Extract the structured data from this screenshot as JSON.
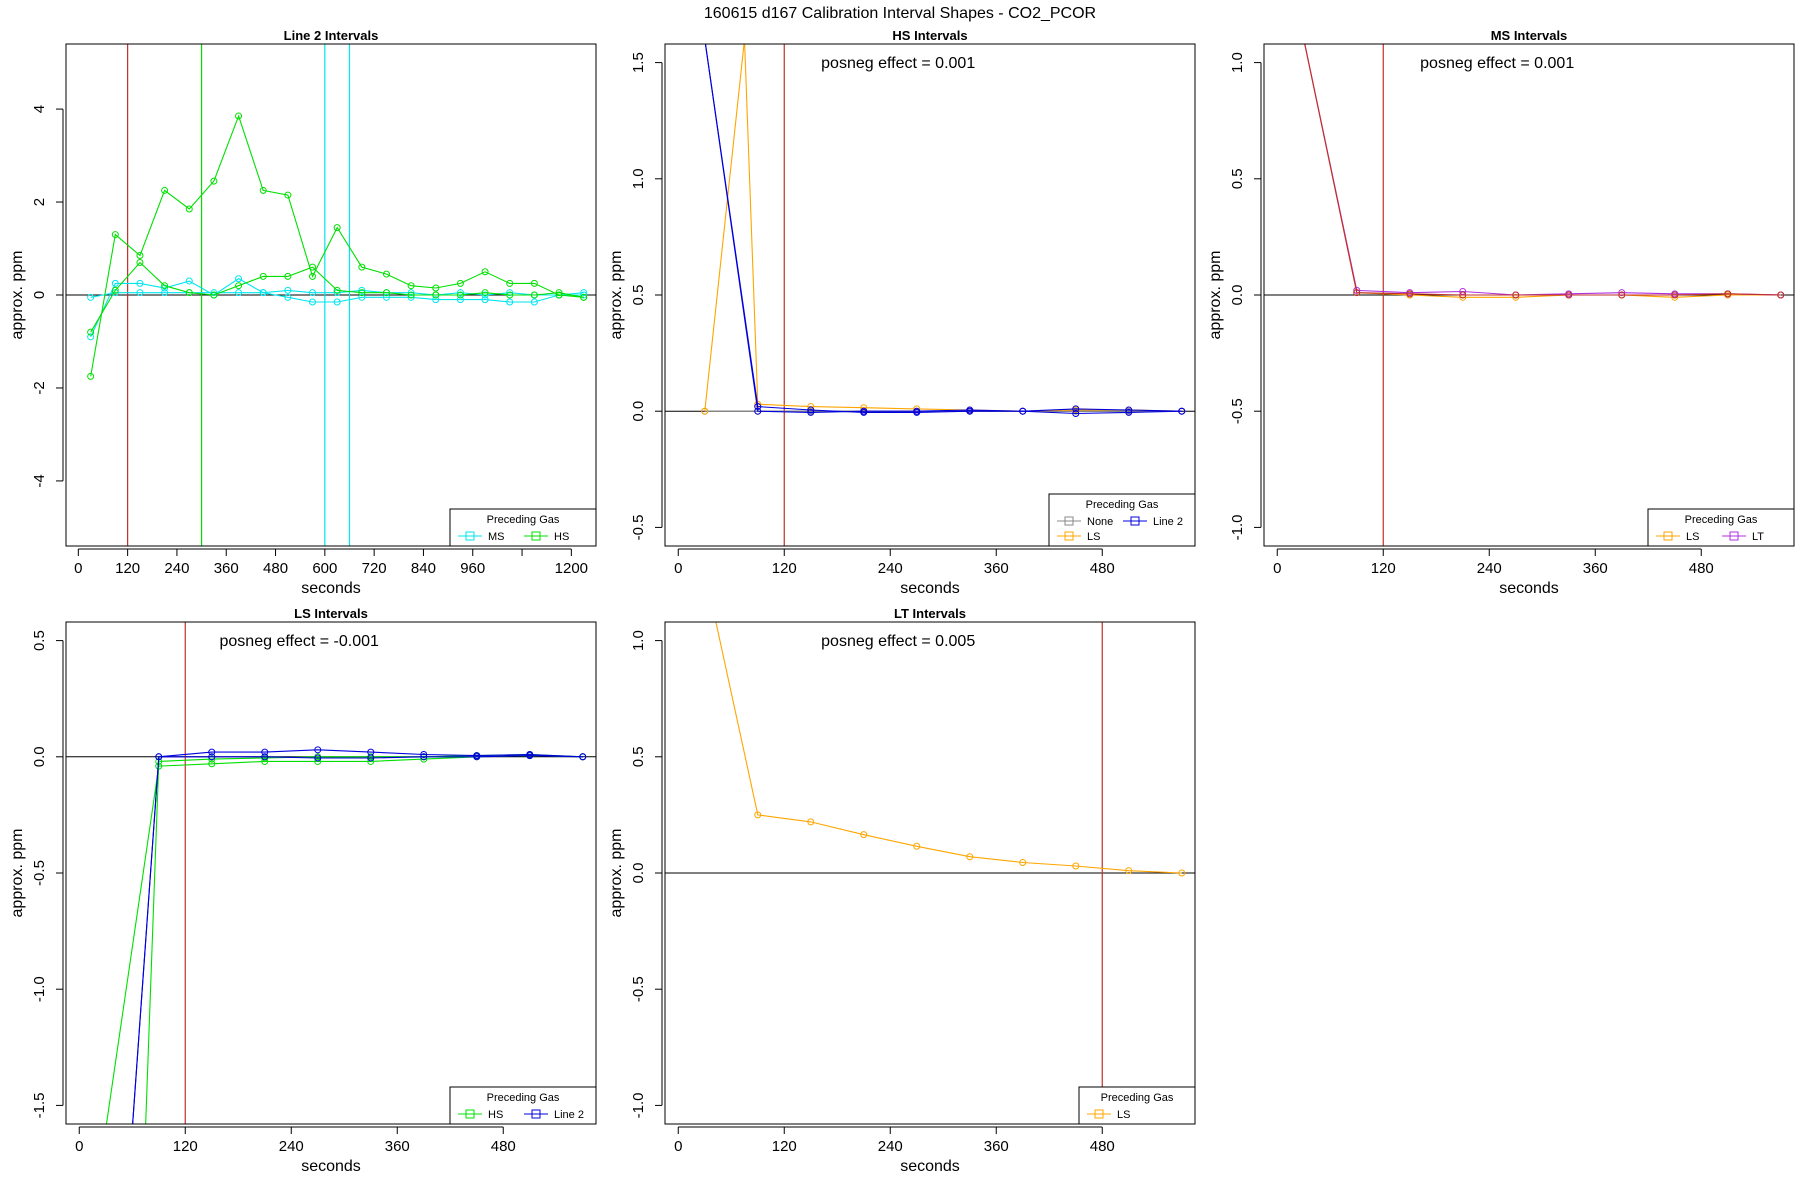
{
  "figure": {
    "title": "160615  d167   Calibration Interval Shapes - CO2_PCOR",
    "colors": {
      "ms": "#00e5ee",
      "hs": "#00e000",
      "ls": "#ffa500",
      "lt": "#b030e0",
      "line2": "#0000dd",
      "none": "#888888",
      "redline": "#c0302a",
      "zero": "#000000"
    }
  },
  "chart_data": [
    {
      "id": "line2",
      "type": "line",
      "title": "Line 2 Intervals",
      "xlabel": "seconds",
      "ylabel": "approx. ppm",
      "xlim": [
        -30,
        1260
      ],
      "ylim": [
        -5.4,
        5.4
      ],
      "xticks": [
        0,
        120,
        240,
        360,
        480,
        600,
        720,
        840,
        960,
        1080,
        1200
      ],
      "xtick_labels": [
        "0",
        "120",
        "240",
        "360",
        "480",
        "600",
        "720",
        "840",
        "960",
        "",
        "1200"
      ],
      "yticks": [
        -4,
        -2,
        0,
        2,
        4
      ],
      "posneg": "",
      "vlines": [
        {
          "x": 120,
          "color": "redline"
        },
        {
          "x": 300,
          "color": "hs"
        },
        {
          "x": 600,
          "color": "ms"
        },
        {
          "x": 660,
          "color": "ms"
        }
      ],
      "series": [
        {
          "name": "MS",
          "color": "ms",
          "x": [
            30,
            90,
            150,
            210,
            270,
            330,
            390,
            450,
            510,
            570,
            630,
            690,
            750,
            810,
            870,
            930,
            990,
            1050,
            1110,
            1170,
            1230
          ],
          "y": [
            -0.9,
            0.25,
            0.25,
            0.15,
            0.3,
            0.0,
            0.35,
            0.05,
            0.1,
            0.05,
            0.05,
            0.1,
            0.05,
            0.05,
            0.0,
            0.05,
            0.0,
            0.05,
            0.0,
            0.0,
            0.05
          ]
        },
        {
          "name": "MS",
          "color": "ms",
          "x": [
            30,
            90,
            150,
            210,
            270,
            330,
            390,
            450,
            510,
            570,
            630,
            690,
            750,
            810,
            870,
            930,
            990,
            1050,
            1110,
            1170,
            1230
          ],
          "y": [
            -0.05,
            0.05,
            0.05,
            0.05,
            0.05,
            0.05,
            0.05,
            0.05,
            -0.05,
            -0.15,
            -0.15,
            -0.05,
            -0.05,
            -0.05,
            -0.1,
            -0.1,
            -0.1,
            -0.15,
            -0.15,
            0.0,
            0.0
          ]
        },
        {
          "name": "HS",
          "color": "hs",
          "x": [
            30,
            90,
            150,
            210,
            270,
            330,
            390,
            450,
            510,
            570,
            630,
            690,
            750,
            810,
            870,
            930,
            990,
            1050,
            1110,
            1170,
            1230
          ],
          "y": [
            -1.75,
            1.3,
            0.85,
            2.25,
            1.85,
            2.45,
            3.85,
            2.25,
            2.15,
            0.4,
            1.45,
            0.6,
            0.45,
            0.2,
            0.15,
            0.25,
            0.5,
            0.25,
            0.25,
            0.0,
            -0.05
          ]
        },
        {
          "name": "HS",
          "color": "hs",
          "x": [
            30,
            90,
            150,
            210,
            270,
            330,
            390,
            450,
            510,
            570,
            630,
            690,
            750,
            810,
            870,
            930,
            990,
            1050,
            1110,
            1170,
            1230
          ],
          "y": [
            -0.8,
            0.1,
            0.7,
            0.2,
            0.05,
            0.0,
            0.2,
            0.4,
            0.4,
            0.6,
            0.1,
            0.05,
            0.05,
            0.0,
            0.0,
            0.0,
            0.05,
            0.0,
            0.0,
            0.05,
            -0.05
          ]
        }
      ],
      "legend": {
        "title": "Preceding Gas",
        "position": "bottom-right",
        "entries": [
          {
            "label": "MS",
            "color": "ms"
          },
          {
            "label": "HS",
            "color": "hs"
          }
        ]
      }
    },
    {
      "id": "hs",
      "type": "line",
      "title": "HS Intervals",
      "xlabel": "seconds",
      "ylabel": "approx. ppm",
      "xlim": [
        -15,
        585
      ],
      "ylim": [
        -0.58,
        1.58
      ],
      "xticks": [
        0,
        120,
        240,
        360,
        480
      ],
      "xtick_labels": [
        "0",
        "120",
        "240",
        "360",
        "480"
      ],
      "yticks": [
        -0.5,
        0.0,
        0.5,
        1.0,
        1.5
      ],
      "posneg": "posneg effect = 0.001",
      "vlines": [
        {
          "x": 120,
          "color": "redline"
        }
      ],
      "series": [
        {
          "name": "None",
          "color": "none",
          "x": [
            30,
            90,
            150,
            210,
            270,
            330,
            390,
            450,
            510,
            570
          ],
          "y": [
            0.0,
            0.0,
            0.0,
            0.0,
            0.0,
            0.0,
            0.0,
            0.0,
            0.0,
            0.0
          ]
        },
        {
          "name": "LS",
          "color": "ls",
          "x": [
            30,
            75,
            90,
            150,
            210,
            270,
            330,
            390,
            450,
            510,
            570
          ],
          "y": [
            0.0,
            1.6,
            0.03,
            0.02,
            0.015,
            0.01,
            0.005,
            0.0,
            0.005,
            0.005,
            0.0
          ]
        },
        {
          "name": "Line 2",
          "color": "line2",
          "x": [
            30,
            90,
            150,
            210,
            270,
            330,
            390,
            450,
            510,
            570
          ],
          "y": [
            1.6,
            0.0,
            -0.005,
            0.0,
            0.0,
            0.005,
            0.0,
            0.01,
            0.005,
            0.0
          ]
        },
        {
          "name": "Line 2",
          "color": "line2",
          "x": [
            30,
            90,
            150,
            210,
            270,
            330,
            390,
            450,
            510,
            570
          ],
          "y": [
            1.6,
            0.02,
            0.005,
            -0.005,
            -0.005,
            0.0,
            0.0,
            -0.01,
            -0.005,
            0.0
          ]
        }
      ],
      "legend": {
        "title": "Preceding Gas",
        "position": "bottom-right",
        "entries": [
          {
            "label": "None",
            "color": "none"
          },
          {
            "label": "Line 2",
            "color": "line2"
          },
          {
            "label": "LS",
            "color": "ls"
          }
        ]
      }
    },
    {
      "id": "ms",
      "type": "line",
      "title": "MS Intervals",
      "xlabel": "seconds",
      "ylabel": "approx. ppm",
      "xlim": [
        -15,
        585
      ],
      "ylim": [
        -1.08,
        1.08
      ],
      "xticks": [
        0,
        120,
        240,
        360,
        480
      ],
      "xtick_labels": [
        "0",
        "120",
        "240",
        "360",
        "480"
      ],
      "yticks": [
        -1.0,
        -0.5,
        0.0,
        0.5,
        1.0
      ],
      "posneg": "posneg effect = 0.001",
      "vlines": [
        {
          "x": 120,
          "color": "redline"
        }
      ],
      "series": [
        {
          "name": "LS",
          "color": "ls",
          "x": [
            30,
            90,
            150,
            210,
            270,
            330,
            390,
            450,
            510,
            570
          ],
          "y": [
            1.1,
            0.01,
            0.0,
            -0.01,
            -0.01,
            0.0,
            0.0,
            -0.01,
            0.0,
            0.0
          ]
        },
        {
          "name": "LT",
          "color": "lt",
          "x": [
            30,
            90,
            150,
            210,
            270,
            330,
            390,
            450,
            510,
            570
          ],
          "y": [
            1.1,
            0.02,
            0.01,
            0.015,
            0.0,
            0.005,
            0.01,
            0.005,
            0.005,
            0.0
          ]
        },
        {
          "name": "LS",
          "color": "redline",
          "x": [
            30,
            90,
            150,
            210,
            270,
            330,
            390,
            450,
            510,
            570
          ],
          "y": [
            1.1,
            0.01,
            0.005,
            0.0,
            0.0,
            0.0,
            0.0,
            0.0,
            0.005,
            0.0
          ]
        }
      ],
      "legend": {
        "title": "Preceding Gas",
        "position": "bottom-right",
        "entries": [
          {
            "label": "LS",
            "color": "ls"
          },
          {
            "label": "LT",
            "color": "lt"
          }
        ]
      }
    },
    {
      "id": "ls",
      "type": "line",
      "title": "LS Intervals",
      "xlabel": "seconds",
      "ylabel": "approx. ppm",
      "xlim": [
        -15,
        585
      ],
      "ylim": [
        -1.58,
        0.58
      ],
      "xticks": [
        0,
        120,
        240,
        360,
        480
      ],
      "xtick_labels": [
        "0",
        "120",
        "240",
        "360",
        "480"
      ],
      "yticks": [
        -1.5,
        -1.0,
        -0.5,
        0.0,
        0.5
      ],
      "posneg": "posneg effect = -0.001",
      "vlines": [
        {
          "x": 120,
          "color": "redline"
        }
      ],
      "series": [
        {
          "name": "HS",
          "color": "hs",
          "x": [
            30,
            90,
            150,
            210,
            270,
            330,
            390,
            450,
            510,
            570
          ],
          "y": [
            -1.6,
            -0.04,
            -0.03,
            -0.02,
            -0.02,
            -0.02,
            -0.01,
            0.0,
            0.005,
            0.0
          ]
        },
        {
          "name": "HS",
          "color": "hs",
          "x": [
            75,
            90,
            150,
            210,
            270,
            330,
            390,
            450,
            510,
            570
          ],
          "y": [
            -1.6,
            -0.02,
            -0.01,
            -0.005,
            0.0,
            0.0,
            0.0,
            0.005,
            0.01,
            0.0
          ]
        },
        {
          "name": "Line 2",
          "color": "line2",
          "x": [
            30,
            60,
            90,
            150,
            210,
            270,
            330,
            390,
            450,
            510,
            570
          ],
          "y": [
            -1.6,
            -1.6,
            0.0,
            0.02,
            0.02,
            0.03,
            0.02,
            0.01,
            0.005,
            0.01,
            0.0
          ]
        },
        {
          "name": "Line 2",
          "color": "line2",
          "x": [
            60,
            90,
            150,
            210,
            270,
            330,
            390,
            450,
            510,
            570
          ],
          "y": [
            -1.6,
            0.0,
            0.0,
            0.0,
            -0.005,
            -0.005,
            0.0,
            0.0,
            0.005,
            0.0
          ]
        }
      ],
      "legend": {
        "title": "Preceding Gas",
        "position": "bottom-right",
        "entries": [
          {
            "label": "HS",
            "color": "hs"
          },
          {
            "label": "Line 2",
            "color": "line2"
          }
        ]
      }
    },
    {
      "id": "lt",
      "type": "line",
      "title": "LT Intervals",
      "xlabel": "seconds",
      "ylabel": "approx. ppm",
      "xlim": [
        -15,
        585
      ],
      "ylim": [
        -1.08,
        1.08
      ],
      "xticks": [
        0,
        120,
        240,
        360,
        480
      ],
      "xtick_labels": [
        "0",
        "120",
        "240",
        "360",
        "480"
      ],
      "yticks": [
        -1.0,
        -0.5,
        0.0,
        0.5,
        1.0
      ],
      "posneg": "posneg effect = 0.005",
      "vlines": [
        {
          "x": 480,
          "color": "redline"
        }
      ],
      "series": [
        {
          "name": "LS",
          "color": "ls",
          "x": [
            30,
            90,
            150,
            210,
            270,
            330,
            390,
            450,
            510,
            570
          ],
          "y": [
            1.3,
            0.25,
            0.22,
            0.165,
            0.115,
            0.07,
            0.045,
            0.03,
            0.01,
            0.0
          ]
        }
      ],
      "legend": {
        "title": "Preceding Gas",
        "position": "bottom-right",
        "entries": [
          {
            "label": "LS",
            "color": "ls"
          }
        ]
      }
    }
  ]
}
